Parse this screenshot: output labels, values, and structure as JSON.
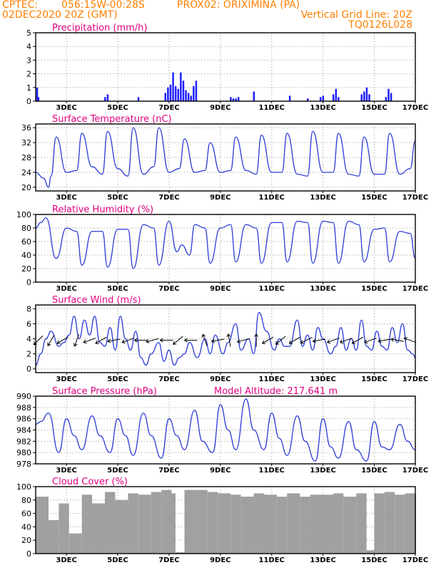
{
  "header": {
    "source": "CPTEC:",
    "location": "056:15W-00:28S",
    "station": "PROX02: ORIXIMINA (PA)",
    "init_time": "02DEC2020 20Z (GMT)",
    "grid_note": "Vertical Grid Line: 20Z",
    "model_code": "TQ0126L028",
    "colors": {
      "header": "#ff8000",
      "title": "#e0007f",
      "line": "#2b3bd6",
      "bar": "#2020ff",
      "cloud": "#a0a0a0"
    }
  },
  "chart_data": [
    {
      "type": "bar",
      "title": "Precipitation (mm/h)",
      "x_tick_labels": [
        "3DEC",
        "5DEC",
        "7DEC",
        "9DEC",
        "11DEC",
        "13DEC",
        "15DEC",
        "17DEC"
      ],
      "ylim": [
        0,
        5
      ],
      "y_ticks": [
        0,
        1,
        2,
        3,
        4,
        5
      ],
      "xlim_days": [
        0,
        14.8
      ],
      "x": [
        0.05,
        0.1,
        2.7,
        2.8,
        4.0,
        5.05,
        5.15,
        5.25,
        5.35,
        5.45,
        5.55,
        5.65,
        5.75,
        5.85,
        5.95,
        6.05,
        6.15,
        6.25,
        7.6,
        7.7,
        7.8,
        7.9,
        8.5,
        9.9,
        10.6,
        11.1,
        11.2,
        11.6,
        11.7,
        11.8,
        12.7,
        12.8,
        12.9,
        13.0,
        13.65,
        13.75,
        13.85
      ],
      "values": [
        1.0,
        0.3,
        0.3,
        0.5,
        0.3,
        0.6,
        1.0,
        1.2,
        2.1,
        1.1,
        0.9,
        2.1,
        1.5,
        0.8,
        0.6,
        0.4,
        1.1,
        1.5,
        0.3,
        0.2,
        0.2,
        0.3,
        0.7,
        0.4,
        0.2,
        0.3,
        0.4,
        0.5,
        0.9,
        0.3,
        0.5,
        0.7,
        1.0,
        0.5,
        0.3,
        0.9,
        0.6
      ]
    },
    {
      "type": "line",
      "title": "Surface Temperature (nC)",
      "x_tick_labels": [
        "3DEC",
        "5DEC",
        "7DEC",
        "9DEC",
        "11DEC",
        "13DEC",
        "15DEC",
        "17DEC"
      ],
      "ylim": [
        19,
        37
      ],
      "y_ticks": [
        20,
        24,
        28,
        32,
        36
      ],
      "xlim_days": [
        0,
        14.8
      ],
      "x": [
        0.0,
        0.3,
        0.5,
        0.6,
        0.8,
        1.2,
        1.6,
        1.8,
        2.2,
        2.6,
        2.8,
        3.2,
        3.6,
        3.8,
        4.2,
        4.6,
        4.8,
        5.2,
        5.6,
        5.8,
        6.2,
        6.6,
        6.8,
        7.2,
        7.6,
        7.8,
        8.2,
        8.6,
        8.8,
        9.2,
        9.6,
        9.8,
        10.2,
        10.6,
        10.8,
        11.2,
        11.6,
        11.8,
        12.2,
        12.6,
        12.8,
        13.2,
        13.6,
        13.8,
        14.2,
        14.6,
        14.8
      ],
      "values": [
        24.0,
        22.5,
        20.0,
        23.0,
        33.5,
        24.0,
        24.5,
        34.5,
        25.5,
        23.5,
        35.0,
        25.0,
        23.0,
        36.0,
        23.5,
        25.5,
        36.0,
        24.0,
        25.0,
        33.0,
        24.0,
        24.5,
        32.0,
        24.0,
        24.5,
        33.5,
        24.5,
        23.5,
        34.0,
        24.0,
        24.0,
        34.5,
        23.5,
        23.0,
        35.0,
        24.0,
        24.0,
        34.5,
        23.5,
        23.0,
        33.5,
        23.5,
        23.5,
        34.5,
        23.5,
        25.0,
        32.5
      ]
    },
    {
      "type": "line",
      "title": "Relative Humidity (%)",
      "x_tick_labels": [
        "3DEC",
        "5DEC",
        "7DEC",
        "9DEC",
        "11DEC",
        "13DEC",
        "15DEC",
        "17DEC"
      ],
      "ylim": [
        0,
        100
      ],
      "y_ticks": [
        0,
        20,
        40,
        60,
        80,
        100
      ],
      "xlim_days": [
        0,
        14.8
      ],
      "x": [
        0.0,
        0.2,
        0.4,
        0.8,
        1.2,
        1.6,
        1.8,
        2.2,
        2.6,
        2.8,
        3.2,
        3.6,
        3.8,
        4.2,
        4.6,
        4.8,
        5.2,
        5.5,
        5.7,
        6.0,
        6.2,
        6.6,
        6.8,
        7.2,
        7.6,
        7.8,
        8.2,
        8.6,
        8.8,
        9.2,
        9.6,
        9.8,
        10.2,
        10.6,
        10.8,
        11.2,
        11.6,
        11.8,
        12.2,
        12.6,
        12.8,
        13.2,
        13.6,
        13.8,
        14.2,
        14.6,
        14.8
      ],
      "values": [
        80,
        88,
        95,
        35,
        80,
        75,
        25,
        75,
        75,
        22,
        78,
        78,
        20,
        85,
        80,
        25,
        90,
        45,
        55,
        40,
        85,
        80,
        28,
        80,
        85,
        30,
        85,
        80,
        28,
        88,
        88,
        30,
        90,
        88,
        28,
        90,
        88,
        28,
        90,
        85,
        30,
        78,
        80,
        30,
        75,
        72,
        35
      ]
    },
    {
      "type": "line",
      "title": "Surface Wind (m/s)",
      "x_tick_labels": [
        "3DEC",
        "5DEC",
        "7DEC",
        "9DEC",
        "11DEC",
        "13DEC",
        "15DEC",
        "17DEC"
      ],
      "ylim": [
        -0.5,
        8.5
      ],
      "y_ticks": [
        0,
        2,
        4,
        6,
        8
      ],
      "xlim_days": [
        0,
        14.8
      ],
      "x": [
        0.0,
        0.2,
        0.4,
        0.6,
        0.9,
        1.1,
        1.3,
        1.5,
        1.7,
        1.9,
        2.1,
        2.3,
        2.5,
        2.7,
        2.9,
        3.1,
        3.3,
        3.5,
        3.7,
        3.9,
        4.1,
        4.3,
        4.5,
        4.8,
        5.0,
        5.2,
        5.4,
        5.6,
        5.8,
        6.0,
        6.3,
        6.6,
        6.8,
        7.0,
        7.3,
        7.5,
        7.8,
        8.0,
        8.3,
        8.5,
        8.7,
        9.0,
        9.3,
        9.5,
        9.7,
        9.9,
        10.2,
        10.4,
        10.6,
        10.8,
        11.0,
        11.2,
        11.5,
        11.7,
        11.9,
        12.1,
        12.3,
        12.5,
        12.7,
        12.9,
        13.1,
        13.3,
        13.5,
        13.7,
        13.9,
        14.1,
        14.3,
        14.5,
        14.7,
        14.8
      ],
      "values": [
        0.5,
        2.0,
        4.0,
        5.0,
        3.0,
        3.5,
        4.5,
        7.0,
        4.0,
        6.5,
        4.5,
        7.0,
        3.5,
        3.0,
        5.5,
        2.5,
        7.0,
        4.0,
        2.5,
        5.0,
        1.5,
        0.5,
        2.0,
        3.5,
        1.0,
        2.5,
        0.5,
        1.5,
        2.0,
        3.5,
        1.5,
        4.0,
        2.0,
        4.5,
        2.0,
        3.5,
        6.0,
        2.5,
        4.0,
        2.0,
        7.5,
        5.0,
        2.5,
        4.0,
        3.0,
        3.0,
        6.5,
        3.0,
        4.5,
        2.5,
        5.5,
        4.0,
        2.0,
        3.0,
        5.5,
        2.5,
        4.0,
        2.5,
        6.5,
        3.0,
        2.5,
        5.0,
        3.0,
        2.5,
        5.5,
        3.5,
        6.0,
        2.5,
        2.0,
        1.5
      ],
      "wind_barb_days": [
        0.1,
        0.6,
        1.05,
        1.6,
        2.1,
        2.55,
        3.05,
        3.6,
        4.1,
        4.55,
        5.1,
        5.55,
        6.05,
        6.6,
        7.1,
        7.55,
        8.1,
        8.6,
        9.05,
        9.55,
        10.1,
        10.55,
        11.05,
        11.6,
        12.1,
        12.55,
        13.05,
        13.6,
        14.1,
        14.6
      ],
      "wind_barb_angles_deg": [
        225,
        240,
        210,
        250,
        200,
        210,
        190,
        200,
        180,
        195,
        180,
        220,
        180,
        110,
        190,
        100,
        195,
        90,
        210,
        220,
        210,
        205,
        190,
        200,
        200,
        210,
        200,
        190,
        170,
        160
      ]
    },
    {
      "type": "line",
      "title": "Surface Pressure (hPa)",
      "annotation": "Model Altitude: 217.641 m",
      "x_tick_labels": [
        "3DEC",
        "5DEC",
        "7DEC",
        "9DEC",
        "11DEC",
        "13DEC",
        "15DEC",
        "17DEC"
      ],
      "ylim": [
        978,
        990
      ],
      "y_ticks": [
        978,
        980,
        982,
        984,
        986,
        988,
        990
      ],
      "xlim_days": [
        0,
        14.8
      ],
      "x": [
        0.0,
        0.2,
        0.5,
        0.9,
        1.2,
        1.5,
        1.8,
        2.2,
        2.5,
        2.9,
        3.2,
        3.5,
        3.8,
        4.2,
        4.5,
        4.9,
        5.2,
        5.5,
        5.8,
        6.2,
        6.5,
        6.9,
        7.2,
        7.5,
        7.8,
        8.2,
        8.5,
        8.9,
        9.2,
        9.5,
        9.8,
        10.2,
        10.5,
        10.9,
        11.2,
        11.5,
        11.8,
        12.2,
        12.5,
        12.9,
        13.2,
        13.5,
        13.8,
        14.2,
        14.5,
        14.8
      ],
      "values": [
        985.0,
        985.5,
        987.0,
        980.0,
        986.0,
        983.0,
        980.5,
        986.5,
        983.0,
        980.0,
        986.0,
        983.0,
        979.5,
        987.0,
        983.0,
        979.0,
        986.0,
        983.0,
        980.5,
        987.5,
        982.0,
        980.0,
        988.5,
        984.0,
        980.5,
        989.5,
        984.0,
        980.5,
        987.0,
        982.5,
        979.5,
        986.5,
        982.0,
        978.5,
        986.0,
        981.0,
        979.0,
        985.5,
        980.5,
        978.5,
        985.5,
        981.0,
        980.5,
        985.0,
        982.0,
        980.5
      ]
    },
    {
      "type": "bar",
      "title": "Cloud Cover (%)",
      "x_tick_labels": [
        "3DEC",
        "5DEC",
        "7DEC",
        "9DEC",
        "11DEC",
        "13DEC",
        "15DEC",
        "17DEC"
      ],
      "ylim": [
        0,
        100
      ],
      "y_ticks": [
        0,
        20,
        40,
        60,
        80,
        100
      ],
      "xlim_days": [
        0,
        14.8
      ],
      "x": [
        0.0,
        0.5,
        0.9,
        1.3,
        1.8,
        2.2,
        2.7,
        3.1,
        3.6,
        4.0,
        4.5,
        4.9,
        5.3,
        5.45,
        5.8,
        6.2,
        6.7,
        7.1,
        7.6,
        8.0,
        8.5,
        8.9,
        9.4,
        9.8,
        10.3,
        10.7,
        11.1,
        11.6,
        12.0,
        12.5,
        12.9,
        13.2,
        13.6,
        14.0,
        14.4,
        14.8
      ],
      "values": [
        85,
        50,
        75,
        30,
        88,
        75,
        92,
        80,
        90,
        88,
        92,
        95,
        90,
        2,
        95,
        95,
        92,
        90,
        88,
        85,
        90,
        88,
        85,
        90,
        85,
        88,
        88,
        90,
        85,
        90,
        5,
        90,
        92,
        88,
        90,
        88
      ]
    }
  ]
}
